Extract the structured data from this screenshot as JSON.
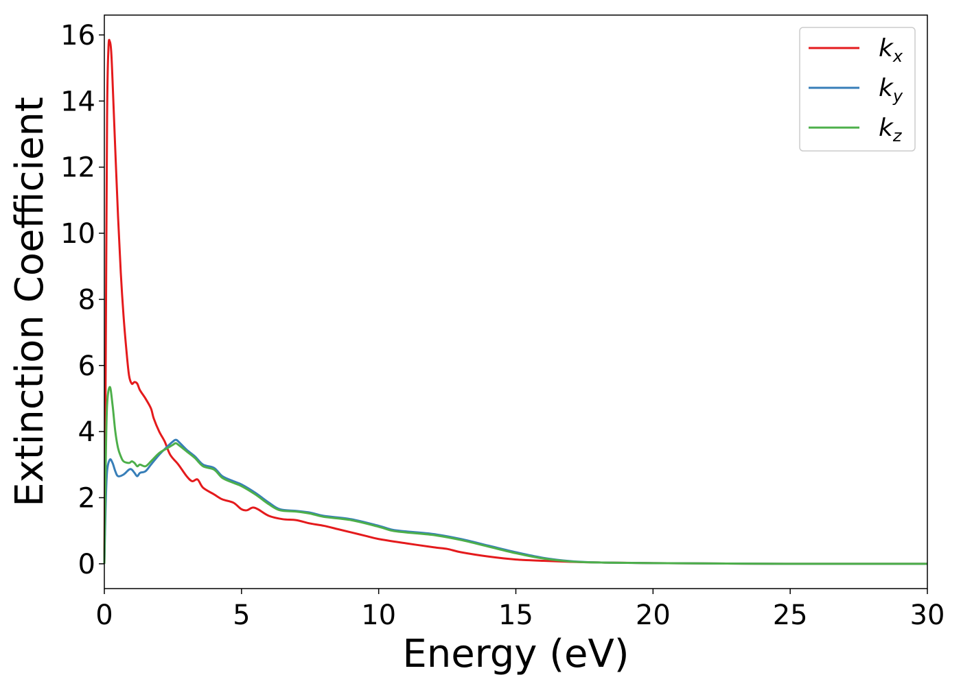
{
  "chart_data": {
    "type": "line",
    "title": "",
    "xlabel": "Energy (eV)",
    "ylabel": "Extinction Coefficient",
    "xlim": [
      0,
      30
    ],
    "ylim": [
      -0.75,
      16.6
    ],
    "xticks": [
      0,
      5,
      10,
      15,
      20,
      25,
      30
    ],
    "yticks": [
      0,
      2,
      4,
      6,
      8,
      10,
      12,
      14,
      16
    ],
    "grid": false,
    "legend_position": "top-right",
    "series": [
      {
        "name": "k",
        "subscript": "x",
        "color": "#e41a1c",
        "points": [
          [
            0,
            0
          ],
          [
            0.05,
            6
          ],
          [
            0.1,
            13.5
          ],
          [
            0.15,
            15.6
          ],
          [
            0.2,
            15.8
          ],
          [
            0.25,
            15.5
          ],
          [
            0.3,
            14.6
          ],
          [
            0.4,
            12.5
          ],
          [
            0.5,
            10.5
          ],
          [
            0.6,
            8.8
          ],
          [
            0.7,
            7.5
          ],
          [
            0.8,
            6.5
          ],
          [
            0.9,
            5.7
          ],
          [
            1.0,
            5.45
          ],
          [
            1.1,
            5.5
          ],
          [
            1.2,
            5.45
          ],
          [
            1.3,
            5.25
          ],
          [
            1.5,
            5.0
          ],
          [
            1.7,
            4.7
          ],
          [
            1.8,
            4.4
          ],
          [
            2.0,
            4.0
          ],
          [
            2.2,
            3.7
          ],
          [
            2.4,
            3.3
          ],
          [
            2.7,
            3.0
          ],
          [
            3.0,
            2.65
          ],
          [
            3.2,
            2.5
          ],
          [
            3.4,
            2.55
          ],
          [
            3.6,
            2.3
          ],
          [
            4.0,
            2.1
          ],
          [
            4.3,
            1.95
          ],
          [
            4.7,
            1.85
          ],
          [
            5.0,
            1.65
          ],
          [
            5.2,
            1.62
          ],
          [
            5.4,
            1.7
          ],
          [
            5.6,
            1.65
          ],
          [
            6.0,
            1.45
          ],
          [
            6.5,
            1.35
          ],
          [
            7.0,
            1.32
          ],
          [
            7.5,
            1.22
          ],
          [
            8.0,
            1.15
          ],
          [
            8.5,
            1.05
          ],
          [
            9.0,
            0.95
          ],
          [
            9.5,
            0.85
          ],
          [
            10.0,
            0.75
          ],
          [
            11.0,
            0.62
          ],
          [
            12.0,
            0.5
          ],
          [
            12.5,
            0.45
          ],
          [
            13.0,
            0.35
          ],
          [
            14.0,
            0.22
          ],
          [
            15.0,
            0.13
          ],
          [
            16.0,
            0.09
          ],
          [
            17.0,
            0.06
          ],
          [
            18.0,
            0.04
          ],
          [
            20.0,
            0.02
          ],
          [
            25.0,
            0.0
          ],
          [
            30.0,
            0.0
          ]
        ]
      },
      {
        "name": "k",
        "subscript": "y",
        "color": "#377eb8",
        "points": [
          [
            0,
            0
          ],
          [
            0.05,
            1.8
          ],
          [
            0.1,
            2.8
          ],
          [
            0.2,
            3.15
          ],
          [
            0.3,
            3.05
          ],
          [
            0.4,
            2.8
          ],
          [
            0.5,
            2.65
          ],
          [
            0.7,
            2.7
          ],
          [
            0.9,
            2.85
          ],
          [
            1.0,
            2.85
          ],
          [
            1.1,
            2.75
          ],
          [
            1.2,
            2.65
          ],
          [
            1.3,
            2.75
          ],
          [
            1.5,
            2.8
          ],
          [
            1.7,
            3.0
          ],
          [
            2.0,
            3.3
          ],
          [
            2.3,
            3.55
          ],
          [
            2.5,
            3.7
          ],
          [
            2.6,
            3.75
          ],
          [
            2.7,
            3.7
          ],
          [
            3.0,
            3.45
          ],
          [
            3.3,
            3.25
          ],
          [
            3.6,
            3.0
          ],
          [
            4.0,
            2.9
          ],
          [
            4.3,
            2.65
          ],
          [
            4.7,
            2.5
          ],
          [
            5.0,
            2.4
          ],
          [
            5.5,
            2.15
          ],
          [
            6.0,
            1.85
          ],
          [
            6.4,
            1.65
          ],
          [
            7.0,
            1.6
          ],
          [
            7.5,
            1.55
          ],
          [
            8.0,
            1.45
          ],
          [
            9.0,
            1.35
          ],
          [
            10.0,
            1.15
          ],
          [
            10.5,
            1.03
          ],
          [
            11.0,
            0.98
          ],
          [
            12.0,
            0.9
          ],
          [
            13.0,
            0.75
          ],
          [
            14.0,
            0.55
          ],
          [
            15.0,
            0.35
          ],
          [
            16.0,
            0.18
          ],
          [
            17.0,
            0.08
          ],
          [
            18.0,
            0.04
          ],
          [
            20.0,
            0.02
          ],
          [
            25.0,
            0.0
          ],
          [
            30.0,
            0.0
          ]
        ]
      },
      {
        "name": "k",
        "subscript": "z",
        "color": "#4daf4a",
        "points": [
          [
            0,
            0
          ],
          [
            0.05,
            3.0
          ],
          [
            0.1,
            4.8
          ],
          [
            0.2,
            5.35
          ],
          [
            0.3,
            4.8
          ],
          [
            0.4,
            4.0
          ],
          [
            0.5,
            3.5
          ],
          [
            0.6,
            3.25
          ],
          [
            0.7,
            3.1
          ],
          [
            0.9,
            3.05
          ],
          [
            1.0,
            3.1
          ],
          [
            1.1,
            3.05
          ],
          [
            1.2,
            2.95
          ],
          [
            1.3,
            3.0
          ],
          [
            1.5,
            2.95
          ],
          [
            1.7,
            3.1
          ],
          [
            2.0,
            3.35
          ],
          [
            2.3,
            3.5
          ],
          [
            2.5,
            3.6
          ],
          [
            2.6,
            3.65
          ],
          [
            2.7,
            3.6
          ],
          [
            3.0,
            3.4
          ],
          [
            3.3,
            3.2
          ],
          [
            3.6,
            2.95
          ],
          [
            4.0,
            2.85
          ],
          [
            4.3,
            2.6
          ],
          [
            4.7,
            2.45
          ],
          [
            5.0,
            2.35
          ],
          [
            5.5,
            2.1
          ],
          [
            6.0,
            1.8
          ],
          [
            6.4,
            1.62
          ],
          [
            7.0,
            1.58
          ],
          [
            7.5,
            1.52
          ],
          [
            8.0,
            1.42
          ],
          [
            9.0,
            1.32
          ],
          [
            10.0,
            1.12
          ],
          [
            10.5,
            1.0
          ],
          [
            11.0,
            0.95
          ],
          [
            12.0,
            0.87
          ],
          [
            13.0,
            0.72
          ],
          [
            14.0,
            0.52
          ],
          [
            15.0,
            0.32
          ],
          [
            16.0,
            0.16
          ],
          [
            17.0,
            0.07
          ],
          [
            18.0,
            0.04
          ],
          [
            20.0,
            0.02
          ],
          [
            25.0,
            0.0
          ],
          [
            30.0,
            0.0
          ]
        ]
      }
    ]
  }
}
